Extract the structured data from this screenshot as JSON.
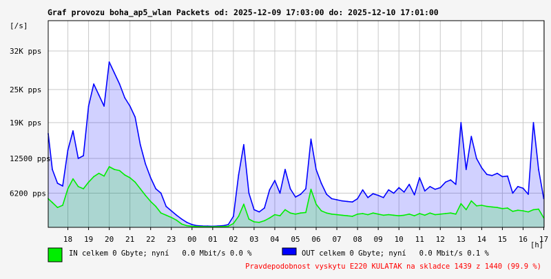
{
  "chart_data": {
    "type": "area",
    "title": "Graf provozu boha_ap5_wlan Packets od: 2025-12-09 17:03:00 do: 2025-12-10 17:01:00",
    "yunit": "[/s]",
    "xunit": "[h]",
    "x_ticks": [
      "18",
      "19",
      "20",
      "21",
      "22",
      "23",
      "00",
      "01",
      "02",
      "03",
      "04",
      "05",
      "06",
      "07",
      "08",
      "09",
      "10",
      "11",
      "12",
      "13",
      "14",
      "15",
      "16",
      "17"
    ],
    "y_ticks": [
      {
        "value": 6200,
        "label": "6200 pps"
      },
      {
        "value": 12500,
        "label": "12500 pps"
      },
      {
        "value": 19000,
        "label": "19K pps"
      },
      {
        "value": 25000,
        "label": "25K pps"
      },
      {
        "value": 32000,
        "label": "32K pps"
      }
    ],
    "ylim": [
      0,
      37500
    ],
    "xlim": [
      17.05,
      41.017
    ],
    "grid": true,
    "series": [
      {
        "name": "IN celkem 0 Gbyte; nyní   0.0 Mbit/s 0.0 %",
        "color": "#00ee00",
        "x": [
          17.05,
          17.25,
          17.5,
          17.75,
          18.0,
          18.25,
          18.5,
          18.75,
          19.0,
          19.25,
          19.5,
          19.75,
          20.0,
          20.25,
          20.5,
          20.75,
          21.0,
          21.25,
          21.5,
          21.75,
          22.0,
          22.25,
          22.5,
          22.75,
          23.0,
          23.25,
          23.5,
          23.75,
          24.0,
          24.25,
          24.5,
          24.75,
          25.0,
          25.25,
          25.5,
          25.75,
          26.0,
          26.25,
          26.5,
          26.75,
          27.0,
          27.25,
          27.5,
          27.75,
          28.0,
          28.25,
          28.5,
          28.75,
          29.0,
          29.25,
          29.5,
          29.75,
          30.0,
          30.25,
          30.5,
          30.75,
          31.0,
          31.25,
          31.5,
          31.75,
          32.0,
          32.25,
          32.5,
          32.75,
          33.0,
          33.25,
          33.5,
          33.75,
          34.0,
          34.25,
          34.5,
          34.75,
          35.0,
          35.25,
          35.5,
          35.75,
          36.0,
          36.25,
          36.5,
          36.75,
          37.0,
          37.25,
          37.5,
          37.75,
          38.0,
          38.25,
          38.5,
          38.75,
          39.0,
          39.25,
          39.5,
          39.75,
          40.0,
          40.25,
          40.5,
          40.75,
          41.0
        ],
        "values": [
          5200,
          4500,
          3600,
          4000,
          7000,
          8800,
          7400,
          7000,
          8200,
          9200,
          9800,
          9300,
          11000,
          10500,
          10300,
          9500,
          9000,
          8200,
          7000,
          5800,
          4700,
          3800,
          2600,
          2200,
          1800,
          1300,
          600,
          300,
          200,
          150,
          120,
          100,
          100,
          120,
          150,
          200,
          700,
          2000,
          4200,
          1500,
          1000,
          900,
          1200,
          1700,
          2300,
          2100,
          3200,
          2600,
          2400,
          2600,
          2700,
          6900,
          4200,
          3000,
          2600,
          2400,
          2300,
          2200,
          2100,
          2000,
          2400,
          2500,
          2300,
          2600,
          2400,
          2200,
          2300,
          2200,
          2100,
          2200,
          2400,
          2100,
          2500,
          2200,
          2600,
          2300,
          2400,
          2500,
          2600,
          2400,
          4300,
          3200,
          4800,
          3900,
          4000,
          3800,
          3700,
          3600,
          3400,
          3500,
          2900,
          3100,
          3000,
          2800,
          3200,
          3300,
          1700
        ]
      },
      {
        "name": "OUT celkem 0 Gbyte; nyní   0.0 Mbit/s 0.1 %",
        "color": "#0000ff",
        "x": [
          17.05,
          17.25,
          17.5,
          17.75,
          18.0,
          18.25,
          18.5,
          18.75,
          19.0,
          19.25,
          19.5,
          19.75,
          20.0,
          20.25,
          20.5,
          20.75,
          21.0,
          21.25,
          21.5,
          21.75,
          22.0,
          22.25,
          22.5,
          22.75,
          23.0,
          23.25,
          23.5,
          23.75,
          24.0,
          24.25,
          24.5,
          24.75,
          25.0,
          25.25,
          25.5,
          25.75,
          26.0,
          26.25,
          26.5,
          26.75,
          27.0,
          27.25,
          27.5,
          27.75,
          28.0,
          28.25,
          28.5,
          28.75,
          29.0,
          29.25,
          29.5,
          29.75,
          30.0,
          30.25,
          30.5,
          30.75,
          31.0,
          31.25,
          31.5,
          31.75,
          32.0,
          32.25,
          32.5,
          32.75,
          33.0,
          33.25,
          33.5,
          33.75,
          34.0,
          34.25,
          34.5,
          34.75,
          35.0,
          35.25,
          35.5,
          35.75,
          36.0,
          36.25,
          36.5,
          36.75,
          37.0,
          37.25,
          37.5,
          37.75,
          38.0,
          38.25,
          38.5,
          38.75,
          39.0,
          39.25,
          39.5,
          39.75,
          40.0,
          40.25,
          40.5,
          40.75,
          41.0
        ],
        "values": [
          17000,
          10500,
          8000,
          7500,
          14000,
          17500,
          12500,
          13000,
          22000,
          26000,
          24000,
          22000,
          30000,
          28000,
          26000,
          23500,
          22000,
          20000,
          15000,
          11500,
          9000,
          7000,
          6200,
          3800,
          3000,
          2200,
          1500,
          900,
          500,
          300,
          250,
          220,
          200,
          250,
          300,
          500,
          2000,
          9500,
          15000,
          6200,
          3200,
          2800,
          3500,
          6800,
          8500,
          6200,
          10500,
          7000,
          5500,
          6000,
          7000,
          16000,
          10500,
          8000,
          6000,
          5200,
          5000,
          4800,
          4700,
          4600,
          5200,
          6800,
          5400,
          6100,
          5800,
          5400,
          6800,
          6200,
          7200,
          6400,
          7800,
          5900,
          9000,
          6600,
          7400,
          6900,
          7200,
          8200,
          8600,
          7800,
          19000,
          10500,
          16500,
          12500,
          10800,
          9600,
          9400,
          9800,
          9200,
          9300,
          6200,
          7400,
          7100,
          6000,
          19000,
          10500,
          5200
        ]
      }
    ]
  },
  "legend": {
    "in_label": "IN celkem 0 Gbyte; nyní   0.0 Mbit/s 0.0 %",
    "out_label": "OUT celkem 0 Gbyte; nyní   0.0 Mbit/s 0.1 %"
  },
  "footer_note": "Pravdepodobnost vyskytu E220 KULATAK na skladce 1439 z 1440 (99.9 %)",
  "colors": {
    "background": "#f5f5f5",
    "plot_background": "#ffffff",
    "grid": "#c8c8c8",
    "axis": "#000000",
    "footer_text": "#ff0000"
  }
}
